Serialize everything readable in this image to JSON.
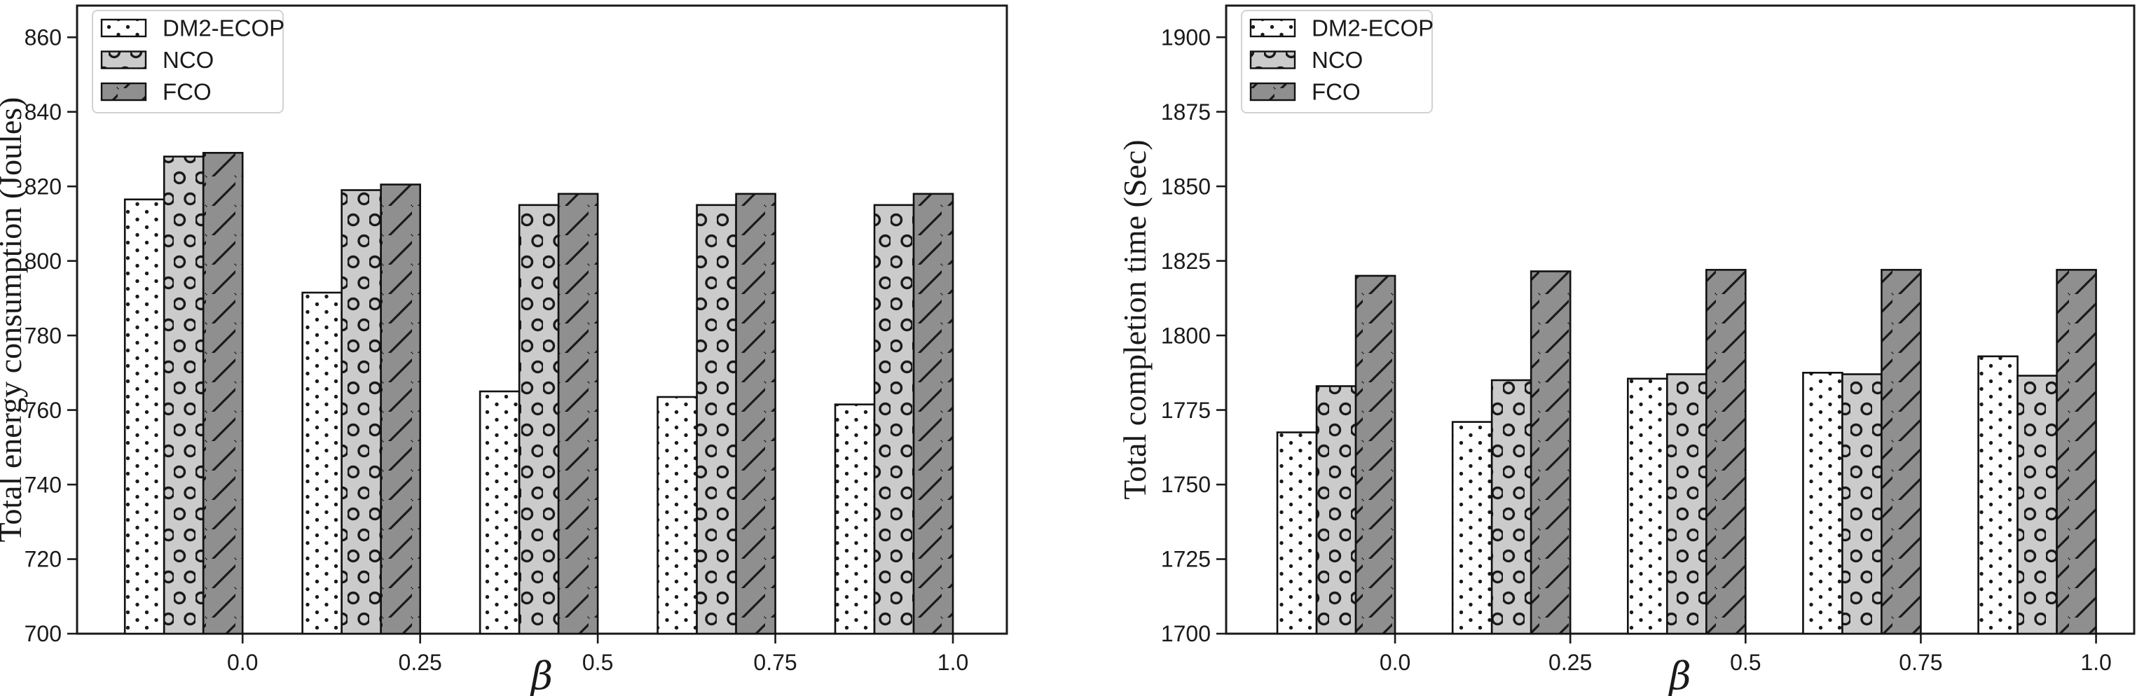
{
  "figure": {
    "background": "#ffffff",
    "panel_count": 2
  },
  "styles": {
    "edge_color": "#111111",
    "hatch_color": "#1a1a1a",
    "text_color": "#1a1a1a",
    "axis_color": "#1a1a1a",
    "legend_border_color": "#d2d2d2",
    "legend_background": "#ffffff",
    "series": [
      {
        "name": "DM2-ECOP",
        "fill": "#fefefe",
        "hatch": "dot"
      },
      {
        "name": "NCO",
        "fill": "#cbcbcb",
        "hatch": "circle"
      },
      {
        "name": "FCO",
        "fill": "#8f8f8f",
        "hatch": "slash"
      }
    ]
  },
  "chart_data": [
    {
      "id": "energy",
      "type": "bar",
      "title": "",
      "xlabel": "β",
      "ylabel": "Total energy consumption (Joules)",
      "categories": [
        "0.0",
        "0.25",
        "0.5",
        "0.75",
        "1.0"
      ],
      "series": [
        {
          "name": "DM2-ECOP",
          "values": [
            816.5,
            791.5,
            765.0,
            763.5,
            761.5
          ]
        },
        {
          "name": "NCO",
          "values": [
            828.0,
            819.0,
            815.0,
            815.0,
            815.0
          ]
        },
        {
          "name": "FCO",
          "values": [
            829.0,
            820.5,
            818.0,
            818.0,
            818.0
          ]
        }
      ],
      "ylim": [
        700,
        868.5
      ],
      "yticks": [
        700,
        720,
        740,
        760,
        780,
        800,
        820,
        840,
        860
      ],
      "grid": false,
      "legend": {
        "position": "upper left",
        "entries": [
          "DM2-ECOP",
          "NCO",
          "FCO"
        ]
      }
    },
    {
      "id": "completion",
      "type": "bar",
      "title": "",
      "xlabel": "β",
      "ylabel": "Total completion time (Sec)",
      "categories": [
        "0.0",
        "0.25",
        "0.5",
        "0.75",
        "1.0"
      ],
      "series": [
        {
          "name": "DM2-ECOP",
          "values": [
            1767.5,
            1771.0,
            1785.5,
            1787.5,
            1793.0
          ]
        },
        {
          "name": "NCO",
          "values": [
            1783.0,
            1785.0,
            1787.0,
            1787.0,
            1786.5
          ]
        },
        {
          "name": "FCO",
          "values": [
            1820.0,
            1821.5,
            1822.0,
            1822.0,
            1822.0
          ]
        }
      ],
      "ylim": [
        1700,
        1910.6
      ],
      "yticks": [
        1700,
        1725,
        1750,
        1775,
        1800,
        1825,
        1850,
        1875,
        1900
      ],
      "grid": false,
      "legend": {
        "position": "upper left",
        "entries": [
          "DM2-ECOP",
          "NCO",
          "FCO"
        ]
      }
    }
  ]
}
